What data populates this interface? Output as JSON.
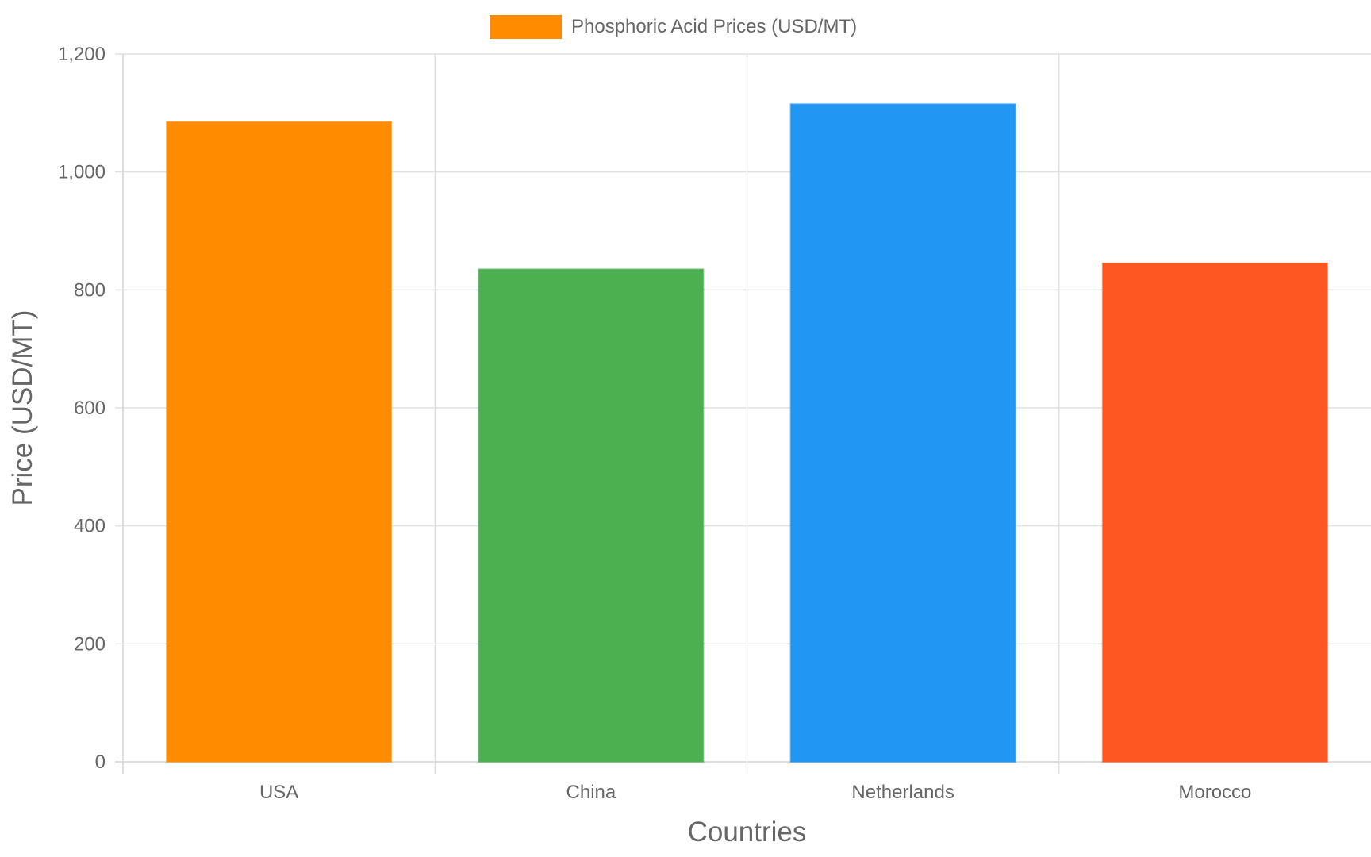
{
  "chart_data": {
    "type": "bar",
    "categories": [
      "USA",
      "China",
      "Netherlands",
      "Morocco"
    ],
    "series": [
      {
        "name": "Phosphoric Acid Prices (USD/MT)",
        "values": [
          1085,
          835,
          1115,
          845
        ],
        "colors": [
          "#FF8C00",
          "#4CAF50",
          "#2196F3",
          "#FF5722"
        ]
      }
    ],
    "legend": {
      "position": "top",
      "label": "Phosphoric Acid Prices (USD/MT)",
      "swatch_color": "#FF8C00"
    },
    "xlabel": "Countries",
    "ylabel": "Price (USD/MT)",
    "ylim": [
      0,
      1200
    ],
    "yticks": [
      0,
      200,
      400,
      600,
      800,
      1000,
      1200
    ],
    "ytick_labels": [
      "0",
      "200",
      "400",
      "600",
      "800",
      "1,000",
      "1,200"
    ],
    "grid": true
  }
}
